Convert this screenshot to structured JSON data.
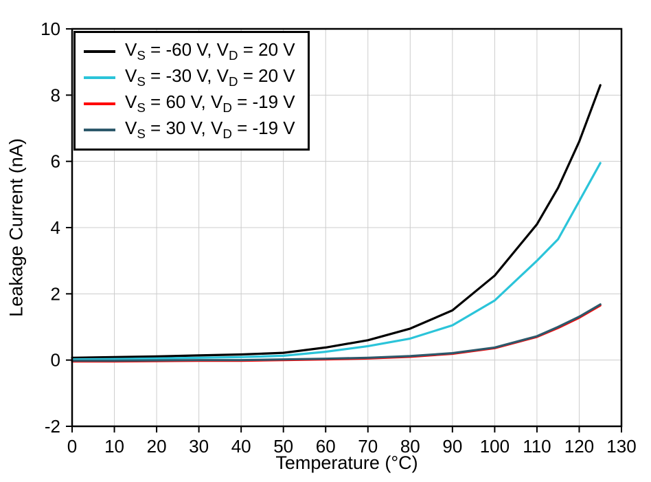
{
  "chart_data": {
    "type": "line",
    "title": "",
    "xlabel": "Temperature (°C)",
    "ylabel": "Leakage Current (nA)",
    "xlim": [
      0,
      130
    ],
    "ylim": [
      -2,
      10
    ],
    "xticks": [
      0,
      10,
      20,
      30,
      40,
      50,
      60,
      70,
      80,
      90,
      100,
      110,
      120,
      130
    ],
    "yticks": [
      -2,
      0,
      2,
      4,
      6,
      8,
      10
    ],
    "grid": true,
    "grid_color": "#cccccc",
    "legend_position": "top-left",
    "x": [
      0,
      10,
      20,
      30,
      40,
      50,
      60,
      70,
      80,
      90,
      100,
      110,
      115,
      120,
      125
    ],
    "series": [
      {
        "name": "VS = -60 V, VD = 20 V",
        "name_parts": [
          {
            "text": "V"
          },
          {
            "sub": "S"
          },
          {
            "text": " = -60 V, V"
          },
          {
            "sub": "D"
          },
          {
            "text": " = 20 V"
          }
        ],
        "color": "#000000",
        "values": [
          0.07,
          0.09,
          0.11,
          0.14,
          0.17,
          0.22,
          0.38,
          0.6,
          0.95,
          1.5,
          2.55,
          4.1,
          5.2,
          6.6,
          8.3
        ]
      },
      {
        "name": "VS = -30 V, VD = 20 V",
        "name_parts": [
          {
            "text": "V"
          },
          {
            "sub": "S"
          },
          {
            "text": " = -30 V, V"
          },
          {
            "sub": "D"
          },
          {
            "text": " = 20 V"
          }
        ],
        "color": "#2BC4D9",
        "values": [
          0.02,
          0.03,
          0.05,
          0.07,
          0.09,
          0.13,
          0.25,
          0.42,
          0.65,
          1.05,
          1.8,
          3.0,
          3.65,
          4.8,
          5.95
        ]
      },
      {
        "name": "VS = 60 V, VD = -19 V",
        "name_parts": [
          {
            "text": "V"
          },
          {
            "sub": "S"
          },
          {
            "text": " = 60 V, V"
          },
          {
            "sub": "D"
          },
          {
            "text": " = -19 V"
          }
        ],
        "color": "#FF0000",
        "values": [
          -0.04,
          -0.04,
          -0.03,
          -0.02,
          -0.02,
          0.0,
          0.02,
          0.05,
          0.1,
          0.19,
          0.36,
          0.7,
          0.97,
          1.28,
          1.65
        ]
      },
      {
        "name": "VS = 30 V, VD = -19 V",
        "name_parts": [
          {
            "text": "V"
          },
          {
            "sub": "S"
          },
          {
            "text": " = 30 V, V"
          },
          {
            "sub": "D"
          },
          {
            "text": " = -19 V"
          }
        ],
        "color": "#2D596B",
        "values": [
          -0.02,
          -0.02,
          -0.01,
          0.0,
          0.0,
          0.02,
          0.04,
          0.07,
          0.12,
          0.21,
          0.38,
          0.72,
          1.0,
          1.31,
          1.68
        ]
      }
    ]
  }
}
